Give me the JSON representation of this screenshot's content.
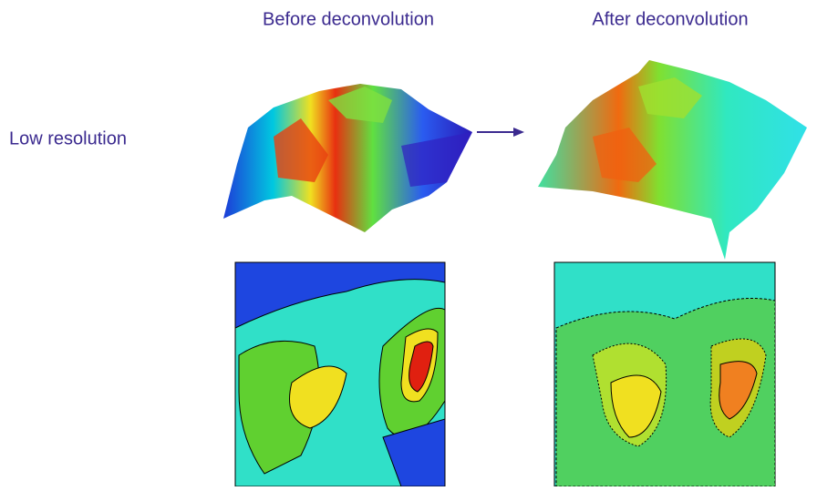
{
  "column_headers": [
    "Before deconvolution",
    "After deconvolution"
  ],
  "row_label": "Low resolution"
}
